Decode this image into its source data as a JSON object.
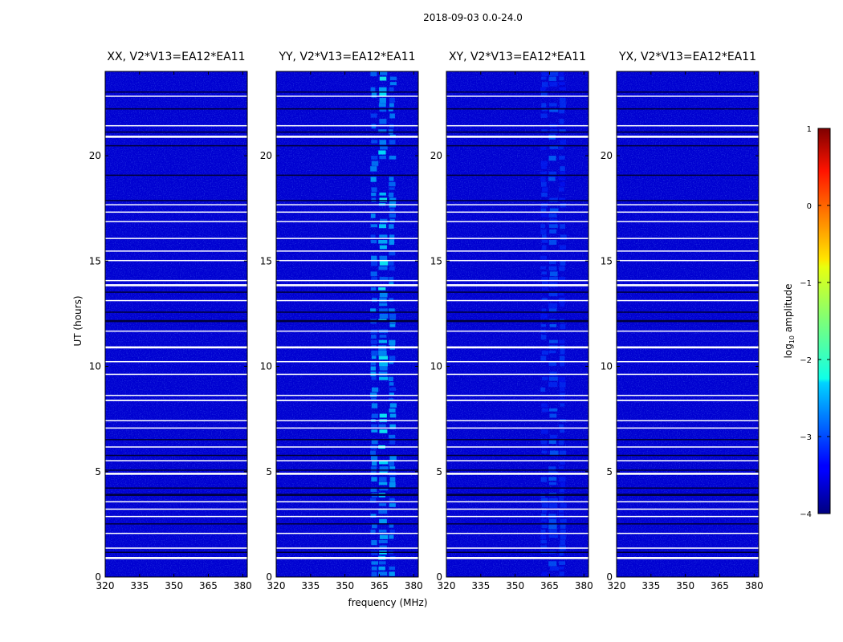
{
  "chart_data": {
    "type": "heatmap",
    "suptitle": "2018-09-03 0.0-24.0",
    "xlabel": "frequency (MHz)",
    "ylabel": "UT (hours)",
    "xlim": [
      320,
      382
    ],
    "ylim": [
      0,
      24
    ],
    "xticks": [
      320,
      335,
      350,
      365,
      380
    ],
    "yticks": [
      0,
      5,
      10,
      15,
      20
    ],
    "panels": [
      {
        "title": "XX, V2*V13=EA12*EA11",
        "rfi_level": 0.0
      },
      {
        "title": "YY, V2*V13=EA12*EA11",
        "rfi_level": 1.0
      },
      {
        "title": "XY, V2*V13=EA12*EA11",
        "rfi_level": 0.55
      },
      {
        "title": "YX, V2*V13=EA12*EA11",
        "rfi_level": 0.0
      }
    ],
    "rfi_bands_mhz": [
      [
        361,
        364
      ],
      [
        364.5,
        368.5
      ],
      [
        369,
        372
      ]
    ],
    "background_log_amplitude": -3.6,
    "white_gaps_ut": [
      [
        0.85,
        0.95
      ],
      [
        1.35,
        1.4
      ],
      [
        2.05,
        2.1
      ],
      [
        2.85,
        2.9
      ],
      [
        3.2,
        3.25
      ],
      [
        3.55,
        3.6
      ],
      [
        4.85,
        4.95
      ],
      [
        5.5,
        5.55
      ],
      [
        6.15,
        6.2
      ],
      [
        7.05,
        7.1
      ],
      [
        7.4,
        7.45
      ],
      [
        8.35,
        8.42
      ],
      [
        8.6,
        8.65
      ],
      [
        9.6,
        9.65
      ],
      [
        10.2,
        10.25
      ],
      [
        10.85,
        10.95
      ],
      [
        11.65,
        11.7
      ],
      [
        13.1,
        13.15
      ],
      [
        13.8,
        13.9
      ],
      [
        14.05,
        14.1
      ],
      [
        15.0,
        15.05
      ],
      [
        15.45,
        15.5
      ],
      [
        16.05,
        16.1
      ],
      [
        16.85,
        16.9
      ],
      [
        17.3,
        17.35
      ],
      [
        17.65,
        17.7
      ],
      [
        20.85,
        20.95
      ],
      [
        21.4,
        21.45
      ],
      [
        22.8,
        22.85
      ]
    ],
    "dark_gaps_ut": [
      [
        1.15,
        1.2
      ],
      [
        2.5,
        2.55
      ],
      [
        3.85,
        3.95
      ],
      [
        4.2,
        4.25
      ],
      [
        5.05,
        5.1
      ],
      [
        5.75,
        5.8
      ],
      [
        6.5,
        6.55
      ],
      [
        12.1,
        12.2
      ],
      [
        12.55,
        12.6
      ],
      [
        13.5,
        13.55
      ],
      [
        17.85,
        17.9
      ],
      [
        19.05,
        19.1
      ],
      [
        20.45,
        20.5
      ],
      [
        21.1,
        21.15
      ],
      [
        22.2,
        22.25
      ],
      [
        23.0,
        23.05
      ]
    ],
    "colorbar": {
      "label": "log10 amplitude",
      "label_prefix": "log",
      "label_sub": "10",
      "label_suffix": " amplitude",
      "range": [
        -4,
        1
      ],
      "ticks": [
        1,
        0,
        -1,
        -2,
        -3,
        -4
      ],
      "colormap": "jet"
    }
  }
}
